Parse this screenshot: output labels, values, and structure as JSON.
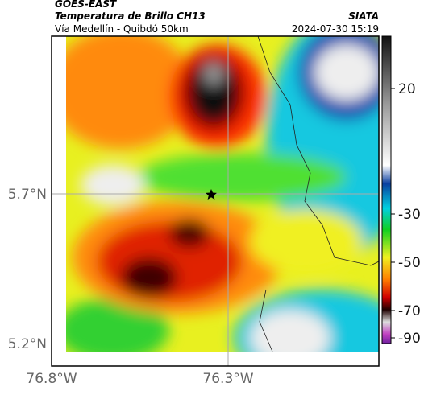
{
  "header": {
    "source": "GOES-EAST",
    "product": "Temperatura de Brillo CH13",
    "route": "Vía Medellín - Quibdó 50km",
    "agency": "SIATA",
    "timestamp": "2024-07-30 15:19"
  },
  "axes": {
    "y_ticks": [
      "5.7°N",
      "5.2°N"
    ],
    "x_ticks": [
      "76.8°W",
      "76.3°W"
    ]
  },
  "colorbar": {
    "ticks": [
      "20",
      "-30",
      "-50",
      "-70",
      "-90"
    ]
  }
}
